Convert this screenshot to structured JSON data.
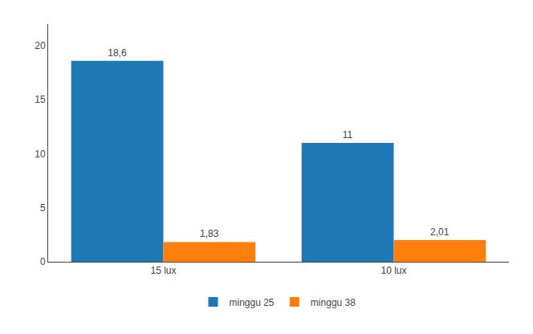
{
  "chart_data": {
    "type": "bar",
    "categories": [
      "15 lux",
      "10 lux"
    ],
    "series": [
      {
        "name": "minggu 25",
        "values": [
          18.6,
          11
        ],
        "value_labels": [
          "18,6",
          "11"
        ]
      },
      {
        "name": "minggu 38",
        "values": [
          1.83,
          2.01
        ],
        "value_labels": [
          "1,83",
          "2,01"
        ]
      }
    ],
    "ylim": [
      0,
      22
    ],
    "yticks": [
      0,
      5,
      10,
      15,
      20
    ],
    "grid": false,
    "legend": "bottom",
    "data_labels": true
  }
}
